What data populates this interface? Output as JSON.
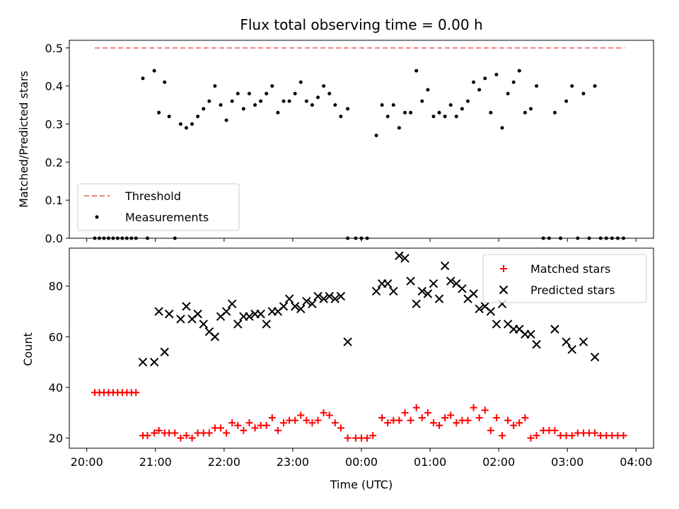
{
  "chart_data": [
    {
      "type": "scatter",
      "title": "Flux total observing time = 0.00 h",
      "xlabel": "",
      "ylabel": "Matched/Predicted stars",
      "xlim": [
        "20:00",
        "04:00"
      ],
      "ylim": [
        0,
        0.52
      ],
      "yticks": [
        "0.0",
        "0.1",
        "0.2",
        "0.3",
        "0.4",
        "0.5"
      ],
      "legend_position": "lower-left",
      "threshold": {
        "name": "Threshold",
        "value": 0.5,
        "x_range": [
          "20:07",
          "03:50"
        ],
        "color": "#f08080",
        "style": "dashed"
      },
      "series": [
        {
          "name": "Measurements",
          "color": "#000000",
          "marker": "dot",
          "points": [
            [
              "20:07",
              0
            ],
            [
              "20:11",
              0
            ],
            [
              "20:15",
              0
            ],
            [
              "20:19",
              0
            ],
            [
              "20:23",
              0
            ],
            [
              "20:27",
              0
            ],
            [
              "20:31",
              0
            ],
            [
              "20:35",
              0
            ],
            [
              "20:39",
              0
            ],
            [
              "20:43",
              0
            ],
            [
              "20:49",
              0.42
            ],
            [
              "20:53",
              0
            ],
            [
              "20:59",
              0.44
            ],
            [
              "21:03",
              0.33
            ],
            [
              "21:08",
              0.41
            ],
            [
              "21:12",
              0.32
            ],
            [
              "21:17",
              0
            ],
            [
              "21:22",
              0.3
            ],
            [
              "21:27",
              0.29
            ],
            [
              "21:32",
              0.3
            ],
            [
              "21:37",
              0.32
            ],
            [
              "21:42",
              0.34
            ],
            [
              "21:47",
              0.36
            ],
            [
              "21:52",
              0.4
            ],
            [
              "21:57",
              0.35
            ],
            [
              "22:02",
              0.31
            ],
            [
              "22:07",
              0.36
            ],
            [
              "22:12",
              0.38
            ],
            [
              "22:17",
              0.34
            ],
            [
              "22:22",
              0.38
            ],
            [
              "22:27",
              0.35
            ],
            [
              "22:32",
              0.36
            ],
            [
              "22:37",
              0.38
            ],
            [
              "22:42",
              0.4
            ],
            [
              "22:47",
              0.33
            ],
            [
              "22:52",
              0.36
            ],
            [
              "22:57",
              0.36
            ],
            [
              "23:02",
              0.38
            ],
            [
              "23:07",
              0.41
            ],
            [
              "23:12",
              0.36
            ],
            [
              "23:17",
              0.35
            ],
            [
              "23:22",
              0.37
            ],
            [
              "23:27",
              0.4
            ],
            [
              "23:32",
              0.38
            ],
            [
              "23:37",
              0.35
            ],
            [
              "23:42",
              0.32
            ],
            [
              "23:48",
              0.34
            ],
            [
              "23:48",
              0
            ],
            [
              "23:55",
              0
            ],
            [
              "24:00",
              0
            ],
            [
              "24:05",
              0
            ],
            [
              "24:13",
              0.27
            ],
            [
              "24:18",
              0.35
            ],
            [
              "24:23",
              0.32
            ],
            [
              "24:28",
              0.35
            ],
            [
              "24:33",
              0.29
            ],
            [
              "24:38",
              0.33
            ],
            [
              "24:43",
              0.33
            ],
            [
              "24:48",
              0.44
            ],
            [
              "24:53",
              0.36
            ],
            [
              "24:58",
              0.39
            ],
            [
              "25:03",
              0.32
            ],
            [
              "25:08",
              0.33
            ],
            [
              "25:13",
              0.32
            ],
            [
              "25:18",
              0.35
            ],
            [
              "25:23",
              0.32
            ],
            [
              "25:28",
              0.34
            ],
            [
              "25:33",
              0.36
            ],
            [
              "25:38",
              0.41
            ],
            [
              "25:43",
              0.39
            ],
            [
              "25:48",
              0.42
            ],
            [
              "25:53",
              0.33
            ],
            [
              "25:58",
              0.43
            ],
            [
              "26:03",
              0.29
            ],
            [
              "26:08",
              0.38
            ],
            [
              "26:13",
              0.41
            ],
            [
              "26:18",
              0.44
            ],
            [
              "26:23",
              0.33
            ],
            [
              "26:28",
              0.34
            ],
            [
              "26:33",
              0.4
            ],
            [
              "26:39",
              0
            ],
            [
              "26:44",
              0
            ],
            [
              "26:49",
              0.33
            ],
            [
              "26:54",
              0
            ],
            [
              "26:59",
              0.36
            ],
            [
              "27:04",
              0.4
            ],
            [
              "27:09",
              0
            ],
            [
              "27:14",
              0.38
            ],
            [
              "27:19",
              0
            ],
            [
              "27:24",
              0.4
            ],
            [
              "27:29",
              0
            ],
            [
              "27:34",
              0
            ],
            [
              "27:39",
              0
            ],
            [
              "27:44",
              0
            ],
            [
              "27:49",
              0
            ]
          ]
        }
      ]
    },
    {
      "type": "scatter",
      "title": "",
      "xlabel": "Time (UTC)",
      "ylabel": "Count",
      "xlim": [
        "20:00",
        "04:00"
      ],
      "ylim": [
        16,
        95
      ],
      "xticks": [
        "20:00",
        "21:00",
        "22:00",
        "23:00",
        "00:00",
        "01:00",
        "02:00",
        "03:00",
        "04:00"
      ],
      "yticks": [
        "20",
        "40",
        "60",
        "80"
      ],
      "legend_position": "top-right",
      "series": [
        {
          "name": "Matched stars",
          "color": "#ff0000",
          "marker": "plus",
          "points": [
            [
              "20:07",
              38
            ],
            [
              "20:11",
              38
            ],
            [
              "20:15",
              38
            ],
            [
              "20:19",
              38
            ],
            [
              "20:23",
              38
            ],
            [
              "20:27",
              38
            ],
            [
              "20:31",
              38
            ],
            [
              "20:35",
              38
            ],
            [
              "20:39",
              38
            ],
            [
              "20:43",
              38
            ],
            [
              "20:49",
              21
            ],
            [
              "20:53",
              21
            ],
            [
              "20:59",
              22
            ],
            [
              "21:03",
              23
            ],
            [
              "21:08",
              22
            ],
            [
              "21:12",
              22
            ],
            [
              "21:17",
              22
            ],
            [
              "21:22",
              20
            ],
            [
              "21:27",
              21
            ],
            [
              "21:32",
              20
            ],
            [
              "21:37",
              22
            ],
            [
              "21:42",
              22
            ],
            [
              "21:47",
              22
            ],
            [
              "21:52",
              24
            ],
            [
              "21:57",
              24
            ],
            [
              "22:02",
              22
            ],
            [
              "22:07",
              26
            ],
            [
              "22:12",
              25
            ],
            [
              "22:17",
              23
            ],
            [
              "22:22",
              26
            ],
            [
              "22:27",
              24
            ],
            [
              "22:32",
              25
            ],
            [
              "22:37",
              25
            ],
            [
              "22:42",
              28
            ],
            [
              "22:47",
              23
            ],
            [
              "22:52",
              26
            ],
            [
              "22:57",
              27
            ],
            [
              "23:02",
              27
            ],
            [
              "23:07",
              29
            ],
            [
              "23:12",
              27
            ],
            [
              "23:17",
              26
            ],
            [
              "23:22",
              27
            ],
            [
              "23:27",
              30
            ],
            [
              "23:32",
              29
            ],
            [
              "23:37",
              26
            ],
            [
              "23:42",
              24
            ],
            [
              "23:48",
              20
            ],
            [
              "23:55",
              20
            ],
            [
              "24:00",
              20
            ],
            [
              "24:05",
              20
            ],
            [
              "24:10",
              21
            ],
            [
              "24:18",
              28
            ],
            [
              "24:23",
              26
            ],
            [
              "24:28",
              27
            ],
            [
              "24:33",
              27
            ],
            [
              "24:38",
              30
            ],
            [
              "24:43",
              27
            ],
            [
              "24:48",
              32
            ],
            [
              "24:53",
              28
            ],
            [
              "24:58",
              30
            ],
            [
              "25:03",
              26
            ],
            [
              "25:08",
              25
            ],
            [
              "25:13",
              28
            ],
            [
              "25:18",
              29
            ],
            [
              "25:23",
              26
            ],
            [
              "25:28",
              27
            ],
            [
              "25:33",
              27
            ],
            [
              "25:38",
              32
            ],
            [
              "25:43",
              28
            ],
            [
              "25:48",
              31
            ],
            [
              "25:53",
              23
            ],
            [
              "25:58",
              28
            ],
            [
              "26:03",
              21
            ],
            [
              "26:08",
              27
            ],
            [
              "26:13",
              25
            ],
            [
              "26:18",
              26
            ],
            [
              "26:23",
              28
            ],
            [
              "26:28",
              20
            ],
            [
              "26:33",
              21
            ],
            [
              "26:39",
              23
            ],
            [
              "26:44",
              23
            ],
            [
              "26:49",
              23
            ],
            [
              "26:54",
              21
            ],
            [
              "26:59",
              21
            ],
            [
              "27:04",
              21
            ],
            [
              "27:09",
              22
            ],
            [
              "27:14",
              22
            ],
            [
              "27:19",
              22
            ],
            [
              "27:24",
              22
            ],
            [
              "27:29",
              21
            ],
            [
              "27:34",
              21
            ],
            [
              "27:39",
              21
            ],
            [
              "27:44",
              21
            ],
            [
              "27:49",
              21
            ]
          ]
        },
        {
          "name": "Predicted stars",
          "color": "#000000",
          "marker": "x",
          "points": [
            [
              "20:49",
              50
            ],
            [
              "20:59",
              50
            ],
            [
              "21:03",
              70
            ],
            [
              "21:08",
              54
            ],
            [
              "21:12",
              69
            ],
            [
              "21:22",
              67
            ],
            [
              "21:27",
              72
            ],
            [
              "21:32",
              67
            ],
            [
              "21:37",
              69
            ],
            [
              "21:42",
              65
            ],
            [
              "21:47",
              62
            ],
            [
              "21:52",
              60
            ],
            [
              "21:57",
              68
            ],
            [
              "22:02",
              70
            ],
            [
              "22:07",
              73
            ],
            [
              "22:12",
              65
            ],
            [
              "22:17",
              68
            ],
            [
              "22:22",
              68
            ],
            [
              "22:27",
              69
            ],
            [
              "22:32",
              69
            ],
            [
              "22:37",
              65
            ],
            [
              "22:42",
              70
            ],
            [
              "22:47",
              70
            ],
            [
              "22:52",
              72
            ],
            [
              "22:57",
              75
            ],
            [
              "23:02",
              72
            ],
            [
              "23:07",
              71
            ],
            [
              "23:12",
              74
            ],
            [
              "23:17",
              73
            ],
            [
              "23:22",
              76
            ],
            [
              "23:27",
              75
            ],
            [
              "23:32",
              76
            ],
            [
              "23:37",
              75
            ],
            [
              "23:42",
              76
            ],
            [
              "23:48",
              58
            ],
            [
              "24:13",
              78
            ],
            [
              "24:18",
              81
            ],
            [
              "24:23",
              81
            ],
            [
              "24:28",
              78
            ],
            [
              "24:33",
              92
            ],
            [
              "24:38",
              91
            ],
            [
              "24:43",
              82
            ],
            [
              "24:48",
              73
            ],
            [
              "24:53",
              78
            ],
            [
              "24:58",
              77
            ],
            [
              "25:03",
              81
            ],
            [
              "25:08",
              75
            ],
            [
              "25:13",
              88
            ],
            [
              "25:18",
              82
            ],
            [
              "25:23",
              81
            ],
            [
              "25:28",
              79
            ],
            [
              "25:33",
              75
            ],
            [
              "25:38",
              77
            ],
            [
              "25:43",
              71
            ],
            [
              "25:48",
              72
            ],
            [
              "25:53",
              70
            ],
            [
              "25:58",
              65
            ],
            [
              "26:03",
              73
            ],
            [
              "26:08",
              65
            ],
            [
              "26:13",
              63
            ],
            [
              "26:18",
              63
            ],
            [
              "26:23",
              61
            ],
            [
              "26:28",
              61
            ],
            [
              "26:33",
              57
            ],
            [
              "26:49",
              63
            ],
            [
              "26:59",
              58
            ],
            [
              "27:04",
              55
            ],
            [
              "27:14",
              58
            ],
            [
              "27:24",
              52
            ]
          ]
        }
      ]
    }
  ]
}
